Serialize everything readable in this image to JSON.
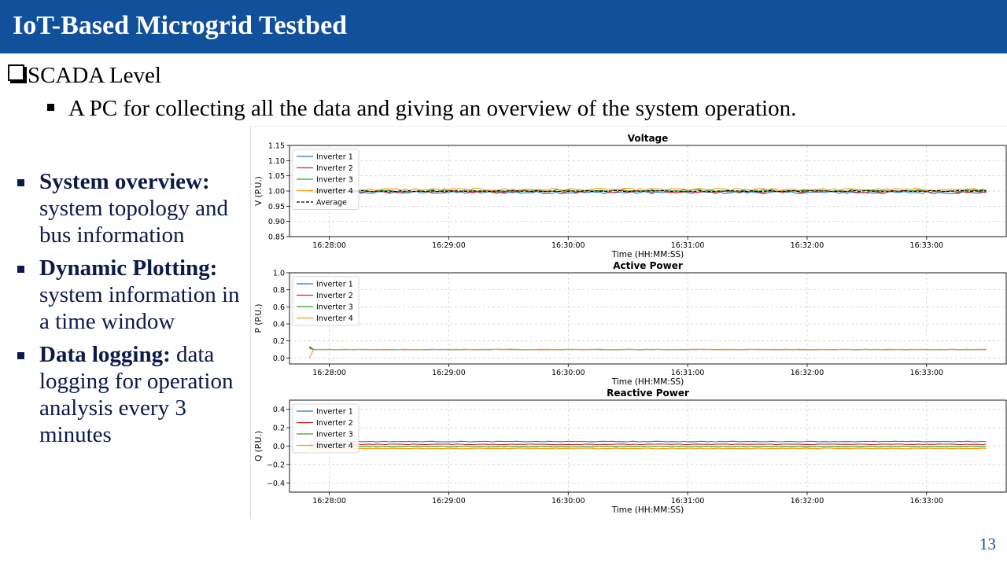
{
  "header": {
    "title": "IoT-Based Microgrid Testbed"
  },
  "section": {
    "level_title": "SCADA Level",
    "sub_bullet": "A PC for collecting all the data and giving an overview of the system operation."
  },
  "features": [
    {
      "bold": "System overview:",
      "rest": " system topology and bus information"
    },
    {
      "bold": "Dynamic Plotting:",
      "rest": " system information in a time window"
    },
    {
      "bold": "Data logging:",
      "rest": " data logging for operation analysis every 3 minutes"
    }
  ],
  "page_number": "13",
  "colors": {
    "header_bg": "#11509b",
    "inverter1": "#1f77b4",
    "inverter2": "#d62728",
    "inverter3": "#2ca02c",
    "inverter4": "#ff9900",
    "average": "#000000"
  },
  "chart_data": [
    {
      "type": "line",
      "title": "Voltage",
      "xlabel": "Time (HH:MM:SS)",
      "ylabel": "V (P.U.)",
      "xlim": [
        "16:27:40",
        "16:33:40"
      ],
      "ylim": [
        0.85,
        1.15
      ],
      "yticks": [
        "0.85",
        "0.90",
        "0.95",
        "1.00",
        "1.05",
        "1.10",
        "1.15"
      ],
      "xticks": [
        "16:28:00",
        "16:29:00",
        "16:30:00",
        "16:31:00",
        "16:32:00",
        "16:33:00"
      ],
      "grid": true,
      "legend_position": "top-left",
      "x_range": [
        "16:27:50",
        "16:33:30"
      ],
      "series": [
        {
          "name": "Inverter 1",
          "level": 0.995,
          "noise": 0.004
        },
        {
          "name": "Inverter 2",
          "level": 0.998,
          "noise": 0.004
        },
        {
          "name": "Inverter 3",
          "level": 1.001,
          "noise": 0.004
        },
        {
          "name": "Inverter 4",
          "level": 1.005,
          "noise": 0.004
        },
        {
          "name": "Average",
          "level": 1.0,
          "noise": 0.002,
          "dashed": true
        }
      ]
    },
    {
      "type": "line",
      "title": "Active Power",
      "xlabel": "Time (HH:MM:SS)",
      "ylabel": "P (P.U.)",
      "xlim": [
        "16:27:40",
        "16:33:40"
      ],
      "ylim": [
        -0.07,
        1.0
      ],
      "yticks": [
        "0.0",
        "0.2",
        "0.4",
        "0.6",
        "0.8",
        "1.0"
      ],
      "xticks": [
        "16:28:00",
        "16:29:00",
        "16:30:00",
        "16:31:00",
        "16:32:00",
        "16:33:00"
      ],
      "grid": true,
      "legend_position": "top-left",
      "x_range": [
        "16:27:50",
        "16:33:30"
      ],
      "series": [
        {
          "name": "Inverter 1",
          "level": 0.1,
          "noise": 0.002
        },
        {
          "name": "Inverter 2",
          "level": 0.1,
          "noise": 0.002
        },
        {
          "name": "Inverter 3",
          "level": 0.1,
          "noise": 0.002
        },
        {
          "name": "Inverter 4",
          "level": 0.1,
          "noise": 0.002
        }
      ]
    },
    {
      "type": "line",
      "title": "Reactive Power",
      "xlabel": "Time (HH:MM:SS)",
      "ylabel": "Q (P.U.)",
      "xlim": [
        "16:27:40",
        "16:33:40"
      ],
      "ylim": [
        -0.5,
        0.5
      ],
      "yticks": [
        "−0.4",
        "−0.2",
        "0.0",
        "0.2",
        "0.4"
      ],
      "xticks": [
        "16:28:00",
        "16:29:00",
        "16:30:00",
        "16:31:00",
        "16:32:00",
        "16:33:00"
      ],
      "grid": true,
      "legend_position": "top-left",
      "x_range": [
        "16:27:50",
        "16:33:30"
      ],
      "series": [
        {
          "name": "Inverter 1",
          "level": 0.05,
          "noise": 0.003
        },
        {
          "name": "Inverter 2",
          "level": 0.02,
          "noise": 0.003
        },
        {
          "name": "Inverter 3",
          "level": -0.005,
          "noise": 0.003
        },
        {
          "name": "Inverter 4",
          "level": -0.025,
          "noise": 0.003
        }
      ]
    }
  ]
}
